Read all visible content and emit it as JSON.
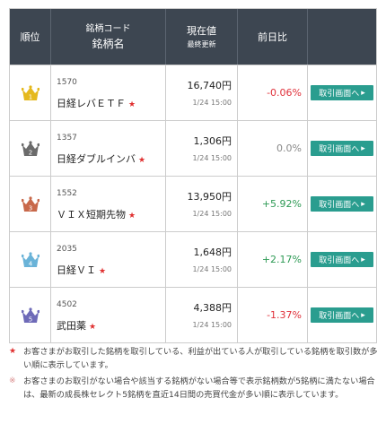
{
  "header": {
    "rank": "順位",
    "name_line1": "銘柄コード",
    "name_line2": "銘柄名",
    "price_line1": "現在値",
    "price_line2": "最終更新",
    "change": "前日比"
  },
  "rows": [
    {
      "rank": "1",
      "code": "1570",
      "name": "日経レバＥＴＦ",
      "star": "★",
      "price": "16,740円",
      "time": "1/24 15:00",
      "change": "-0.06%",
      "button": "取引画面へ",
      "arrow": "▸",
      "crown_color": "#e5b91e"
    },
    {
      "rank": "2",
      "code": "1357",
      "name": "日経ダブルインバ",
      "star": "★",
      "price": "1,306円",
      "time": "1/24 15:00",
      "change": "0.0%",
      "button": "取引画面へ",
      "arrow": "▸",
      "crown_color": "#6b6b6b"
    },
    {
      "rank": "3",
      "code": "1552",
      "name": "ＶＩＸ短期先物",
      "star": "★",
      "price": "13,950円",
      "time": "1/24 15:00",
      "change": "+5.92%",
      "button": "取引画面へ",
      "arrow": "▸",
      "crown_color": "#c8684a"
    },
    {
      "rank": "4",
      "code": "2035",
      "name": "日経ＶＩ",
      "star": "★",
      "price": "1,648円",
      "time": "1/24 15:00",
      "change": "+2.17%",
      "button": "取引画面へ",
      "arrow": "▸",
      "crown_color": "#6ab3d8"
    },
    {
      "rank": "5",
      "code": "4502",
      "name": "武田薬",
      "star": "★",
      "price": "4,388円",
      "time": "1/24 15:00",
      "change": "-1.37%",
      "button": "取引画面へ",
      "arrow": "▸",
      "crown_color": "#6e6ab8"
    }
  ],
  "notes": [
    {
      "mark": "★",
      "text": "お客さまがお取引した銘柄を取引している、利益が出ている人が取引している銘柄を取引数が多い順に表示しています。"
    },
    {
      "mark": "※",
      "text": "お客さまのお取引がない場合や該当する銘柄がない場合等で表示銘柄数が5銘柄に満たない場合は、最新の成長株セレクト5銘柄を直近14日間の売買代金が多い順に表示しています。"
    }
  ],
  "colors": {
    "header_bg": "#3d4651",
    "button_bg": "#2a9d8f",
    "negative": "#e0303a",
    "positive": "#2e9a55",
    "neutral": "#888888"
  }
}
